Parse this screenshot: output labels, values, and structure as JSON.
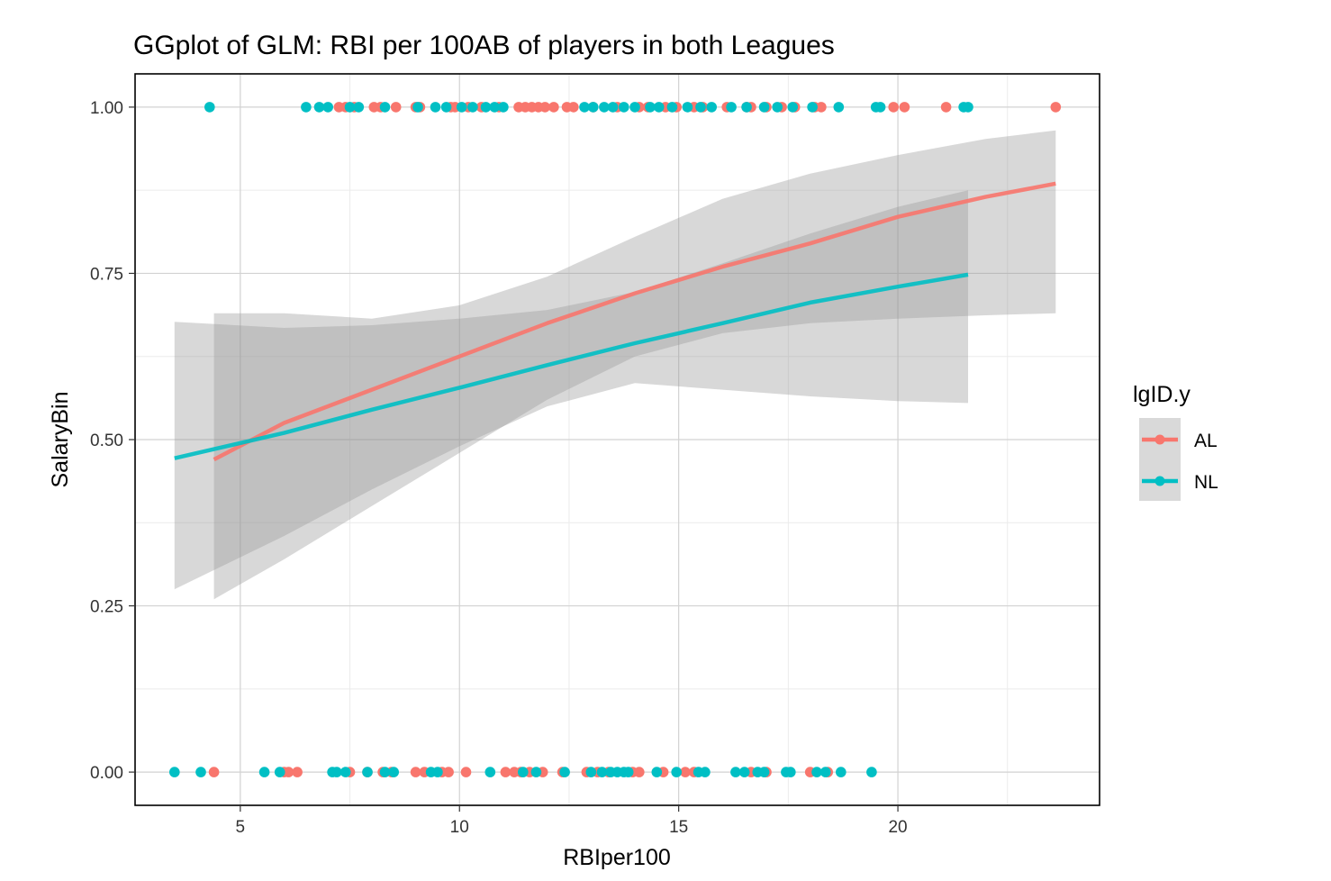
{
  "chart_data": {
    "type": "scatter",
    "title": "GGplot of GLM: RBI per 100AB of players in both Leagues",
    "xlabel": "RBIper100",
    "ylabel": "SalaryBin",
    "xlim": [
      2.6,
      24.6
    ],
    "ylim": [
      -0.05,
      1.05
    ],
    "x_ticks": [
      5,
      10,
      15,
      20
    ],
    "x_tick_labels": [
      "5",
      "10",
      "15",
      "20"
    ],
    "y_ticks": [
      0,
      0.25,
      0.5,
      0.75,
      1
    ],
    "y_tick_labels": [
      "0.00",
      "0.25",
      "0.50",
      "0.75",
      "1.00"
    ],
    "grid": true,
    "legend": {
      "title": "lgID.y",
      "position": "right",
      "entries": [
        "AL",
        "NL"
      ]
    },
    "colors": {
      "AL": "#F8766D",
      "NL": "#00BFC4"
    },
    "series": [
      {
        "name": "AL",
        "color": "#F8766D",
        "points": {
          "y1": [
            7.25,
            7.4,
            7.6,
            8.05,
            8.2,
            8.55,
            9.0,
            9.1,
            9.8,
            9.9,
            10.2,
            10.5,
            10.9,
            11.35,
            11.5,
            11.65,
            11.8,
            11.95,
            12.15,
            12.45,
            12.6,
            13.05,
            13.6,
            14.1,
            14.3,
            14.7,
            14.95,
            15.35,
            15.55,
            16.1,
            16.55,
            16.65,
            17.0,
            17.35,
            17.65,
            18.1,
            18.25,
            19.9,
            20.15,
            21.1,
            23.6
          ],
          "y0": [
            4.4,
            6.0,
            6.1,
            6.3,
            7.5,
            7.9,
            8.25,
            8.45,
            9.0,
            9.2,
            9.6,
            9.75,
            10.15,
            11.05,
            11.25,
            11.4,
            11.6,
            11.9,
            12.35,
            12.9,
            13.15,
            13.4,
            13.95,
            14.1,
            14.65,
            15.15,
            15.35,
            16.65,
            17.0,
            18.0,
            18.4
          ]
        },
        "fit": {
          "x": [
            4.4,
            6,
            8,
            10,
            12,
            14,
            16,
            18,
            20,
            22,
            23.6
          ],
          "y": [
            0.47,
            0.525,
            0.575,
            0.625,
            0.675,
            0.72,
            0.76,
            0.795,
            0.835,
            0.865,
            0.885
          ],
          "lower": [
            0.26,
            0.32,
            0.4,
            0.48,
            0.56,
            0.625,
            0.66,
            0.675,
            0.682,
            0.687,
            0.69
          ],
          "upper": [
            0.69,
            0.69,
            0.682,
            0.702,
            0.745,
            0.805,
            0.862,
            0.9,
            0.928,
            0.952,
            0.965
          ]
        }
      },
      {
        "name": "NL",
        "color": "#00BFC4",
        "points": {
          "y1": [
            4.3,
            6.5,
            6.8,
            7.0,
            7.5,
            7.7,
            8.3,
            9.05,
            9.45,
            9.7,
            10.05,
            10.3,
            10.6,
            10.8,
            11.0,
            12.85,
            13.05,
            13.3,
            13.5,
            13.75,
            14.0,
            14.35,
            14.55,
            14.85,
            15.2,
            15.5,
            15.75,
            16.2,
            16.55,
            16.95,
            17.25,
            17.6,
            18.05,
            18.65,
            19.5,
            19.6,
            21.5,
            21.6
          ],
          "y0": [
            3.5,
            4.1,
            5.55,
            5.9,
            7.1,
            7.2,
            7.4,
            7.9,
            8.3,
            8.5,
            9.35,
            9.5,
            10.7,
            11.45,
            11.75,
            12.4,
            13.0,
            13.25,
            13.45,
            13.6,
            13.75,
            13.85,
            14.5,
            14.95,
            15.45,
            15.6,
            16.3,
            16.5,
            16.8,
            16.95,
            17.45,
            17.55,
            18.15,
            18.35,
            18.7,
            19.4
          ]
        },
        "fit": {
          "x": [
            3.5,
            6,
            8,
            10,
            12,
            14,
            16,
            18,
            20,
            21.6
          ],
          "y": [
            0.472,
            0.51,
            0.545,
            0.578,
            0.612,
            0.645,
            0.675,
            0.706,
            0.73,
            0.748
          ],
          "lower": [
            0.275,
            0.355,
            0.425,
            0.49,
            0.55,
            0.585,
            0.575,
            0.565,
            0.558,
            0.555
          ],
          "upper": [
            0.677,
            0.668,
            0.672,
            0.682,
            0.695,
            0.722,
            0.765,
            0.81,
            0.85,
            0.875
          ]
        }
      }
    ]
  }
}
